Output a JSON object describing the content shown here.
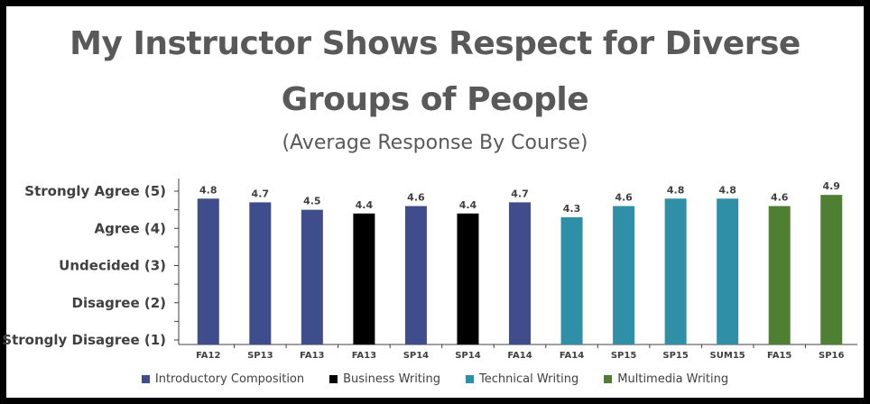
{
  "chart_data": {
    "type": "bar",
    "title_line1": "My Instructor Shows Respect for Diverse",
    "title_line2": "Groups of People",
    "subtitle": "(Average Response By Course)",
    "ylim": [
      1,
      5
    ],
    "y_tick_labels": [
      {
        "value": 5,
        "label": "Strongly Agree (5)"
      },
      {
        "value": 4,
        "label": "Agree (4)"
      },
      {
        "value": 3,
        "label": "Undecided (3)"
      },
      {
        "value": 2,
        "label": "Disagree (2)"
      },
      {
        "value": 1,
        "label": "Strongly Disagree  (1)"
      }
    ],
    "categories": [
      "FA12",
      "SP13",
      "FA13",
      "FA13",
      "SP14",
      "SP14",
      "FA14",
      "FA14",
      "SP15",
      "SP15",
      "SUM15",
      "FA15",
      "SP16"
    ],
    "values": [
      4.8,
      4.7,
      4.5,
      4.4,
      4.6,
      4.4,
      4.7,
      4.3,
      4.6,
      4.8,
      4.8,
      4.6,
      4.9
    ],
    "value_labels": [
      "4.8",
      "4.7",
      "4.5",
      "4.4",
      "4.6",
      "4.4",
      "4.7",
      "4.3",
      "4.6",
      "4.8",
      "4.8",
      "4.6",
      "4.9"
    ],
    "bar_series": [
      0,
      0,
      0,
      1,
      0,
      1,
      0,
      2,
      2,
      2,
      2,
      3,
      3
    ],
    "series": [
      {
        "name": "Introductory Composition",
        "color": "#3F4D8C"
      },
      {
        "name": "Business Writing",
        "color": "#000000"
      },
      {
        "name": "Technical Writing",
        "color": "#2E8FA6"
      },
      {
        "name": "Multimedia Writing",
        "color": "#4E7F32"
      }
    ],
    "grid": false,
    "legend_position": "bottom"
  }
}
